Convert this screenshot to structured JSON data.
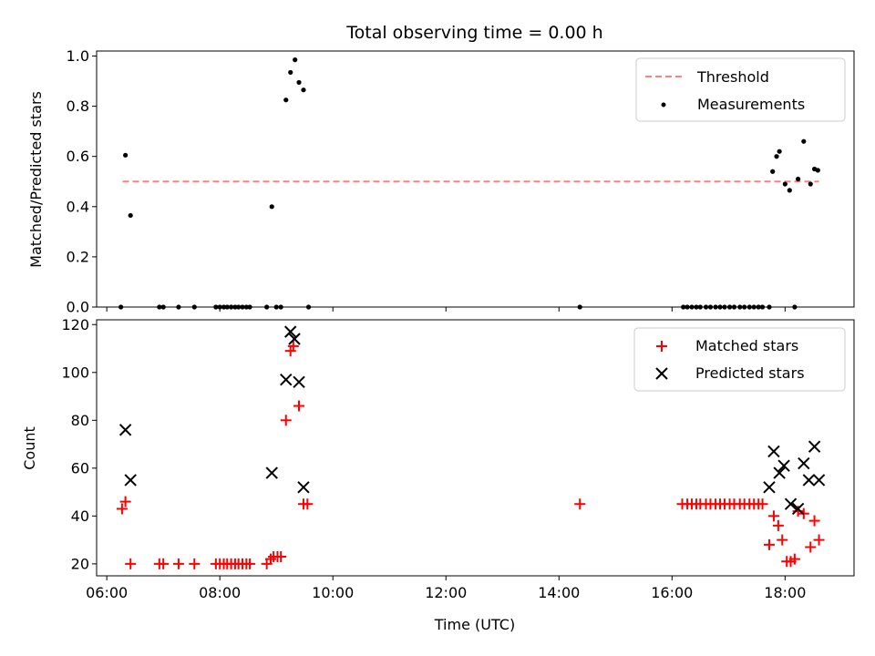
{
  "chart_data": [
    {
      "type": "scatter",
      "title": "Total observing time = 0.00 h",
      "xlabel": "",
      "ylabel": "Matched/Predicted stars",
      "x_unit": "hours (UTC)",
      "xlim": [
        5.82,
        19.22
      ],
      "ylim": [
        0.0,
        1.02
      ],
      "yticks": [
        0.0,
        0.2,
        0.4,
        0.6,
        0.8,
        1.0
      ],
      "ytick_labels": [
        "0.0",
        "0.2",
        "0.4",
        "0.6",
        "0.8",
        "1.0"
      ],
      "legend": {
        "placement": "top-right",
        "entries": [
          "Threshold",
          "Measurements"
        ]
      },
      "threshold": {
        "name": "Threshold",
        "value": 0.5,
        "x_range": [
          6.28,
          18.6
        ],
        "color": "#ff8080",
        "style": "dashed"
      },
      "series": [
        {
          "name": "Measurements",
          "color": "#000000",
          "marker": "dot",
          "x": [
            6.25,
            6.33,
            6.42,
            6.93,
            7.0,
            7.27,
            7.55,
            7.93,
            8.0,
            8.07,
            8.13,
            8.2,
            8.27,
            8.33,
            8.4,
            8.47,
            8.53,
            8.83,
            8.92,
            9.0,
            9.08,
            9.17,
            9.25,
            9.33,
            9.4,
            9.48,
            9.57,
            14.37,
            16.2,
            16.27,
            16.35,
            16.43,
            16.5,
            16.6,
            16.68,
            16.77,
            16.85,
            16.93,
            17.02,
            17.1,
            17.2,
            17.28,
            17.37,
            17.45,
            17.53,
            17.6,
            17.72,
            17.78,
            17.85,
            17.9,
            18.0,
            18.08,
            18.17,
            18.23,
            18.33,
            18.45,
            18.52,
            18.58
          ],
          "y": [
            0.0,
            0.605,
            0.365,
            0.0,
            0.0,
            0.0,
            0.0,
            0.0,
            0.0,
            0.0,
            0.0,
            0.0,
            0.0,
            0.0,
            0.0,
            0.0,
            0.0,
            0.0,
            0.4,
            0.0,
            0.0,
            0.825,
            0.935,
            0.985,
            0.895,
            0.865,
            0.0,
            0.0,
            0.0,
            0.0,
            0.0,
            0.0,
            0.0,
            0.0,
            0.0,
            0.0,
            0.0,
            0.0,
            0.0,
            0.0,
            0.0,
            0.0,
            0.0,
            0.0,
            0.0,
            0.0,
            0.0,
            0.54,
            0.6,
            0.62,
            0.49,
            0.465,
            0.0,
            0.51,
            0.66,
            0.49,
            0.55,
            0.545
          ]
        }
      ]
    },
    {
      "type": "scatter",
      "title": "",
      "xlabel": "Time (UTC)",
      "ylabel": "Count",
      "x_unit": "hours (UTC)",
      "xlim": [
        5.82,
        19.22
      ],
      "ylim": [
        15,
        122
      ],
      "yticks": [
        20,
        40,
        60,
        80,
        100,
        120
      ],
      "ytick_labels": [
        "20",
        "40",
        "60",
        "80",
        "100",
        "120"
      ],
      "xticks": [
        6,
        8,
        10,
        12,
        14,
        16,
        18
      ],
      "xtick_labels": [
        "06:00",
        "08:00",
        "10:00",
        "12:00",
        "14:00",
        "16:00",
        "18:00"
      ],
      "legend": {
        "placement": "top-right",
        "entries": [
          "Matched stars",
          "Predicted stars"
        ]
      },
      "series": [
        {
          "name": "Matched stars",
          "color": "#ff0000",
          "marker": "plus",
          "x": [
            6.27,
            6.33,
            6.42,
            6.93,
            7.0,
            7.27,
            7.55,
            7.93,
            8.0,
            8.07,
            8.13,
            8.2,
            8.27,
            8.33,
            8.4,
            8.47,
            8.53,
            8.83,
            8.9,
            8.95,
            9.02,
            9.08,
            9.17,
            9.25,
            9.3,
            9.4,
            9.48,
            9.55,
            14.37,
            16.18,
            16.27,
            16.35,
            16.43,
            16.5,
            16.6,
            16.68,
            16.77,
            16.85,
            16.93,
            17.02,
            17.1,
            17.2,
            17.28,
            17.37,
            17.45,
            17.53,
            17.6,
            17.72,
            17.8,
            17.88,
            17.95,
            18.03,
            18.1,
            18.17,
            18.23,
            18.33,
            18.45,
            18.52,
            18.6
          ],
          "y": [
            43,
            46,
            20,
            20,
            20,
            20,
            20,
            20,
            20,
            20,
            20,
            20,
            20,
            20,
            20,
            20,
            20,
            20,
            22,
            23,
            23,
            23,
            80,
            109,
            111,
            86,
            45,
            45,
            45,
            45,
            45,
            45,
            45,
            45,
            45,
            45,
            45,
            45,
            45,
            45,
            45,
            45,
            45,
            45,
            45,
            45,
            45,
            28,
            40,
            36,
            30,
            21,
            21,
            22,
            42,
            41,
            27,
            38,
            30
          ]
        },
        {
          "name": "Predicted stars",
          "color": "#000000",
          "marker": "x",
          "x": [
            6.33,
            6.42,
            8.92,
            9.17,
            9.25,
            9.32,
            9.4,
            9.48,
            17.72,
            17.8,
            17.9,
            17.98,
            18.1,
            18.23,
            18.33,
            18.42,
            18.52,
            18.6
          ],
          "y": [
            76,
            55,
            58,
            97,
            117,
            114,
            96,
            52,
            52,
            67,
            58,
            61,
            45,
            43,
            62,
            55,
            69,
            55
          ]
        }
      ]
    }
  ]
}
